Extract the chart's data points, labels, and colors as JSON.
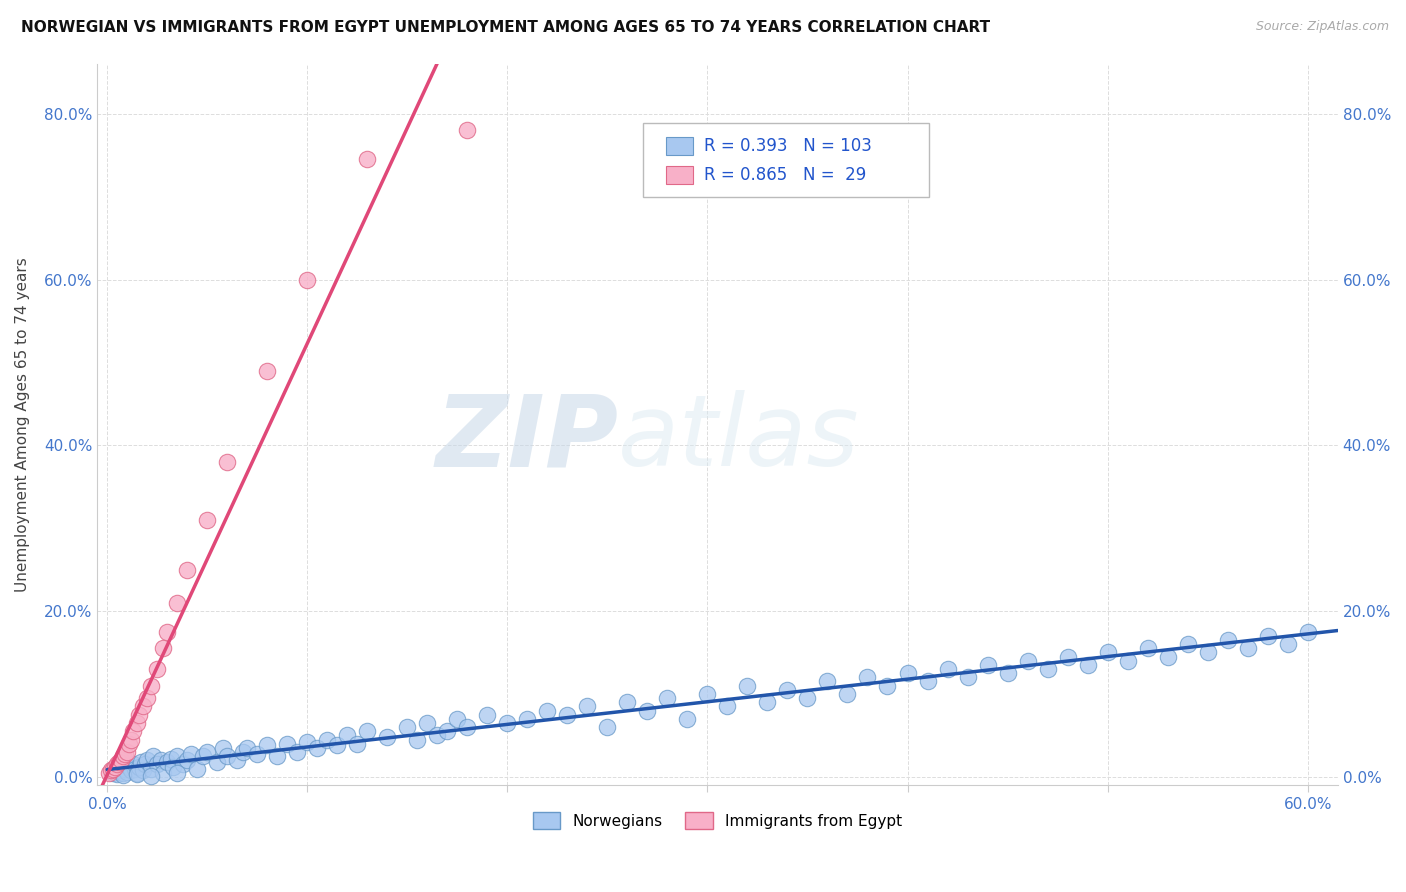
{
  "title": "NORWEGIAN VS IMMIGRANTS FROM EGYPT UNEMPLOYMENT AMONG AGES 65 TO 74 YEARS CORRELATION CHART",
  "source": "Source: ZipAtlas.com",
  "ylabel": "Unemployment Among Ages 65 to 74 years",
  "xlim": [
    -0.005,
    0.615
  ],
  "ylim": [
    -0.01,
    0.86
  ],
  "ytick_vals": [
    0.0,
    0.2,
    0.4,
    0.6,
    0.8
  ],
  "ytick_labels": [
    "0.0%",
    "20.0%",
    "40.0%",
    "60.0%",
    "80.0%"
  ],
  "norwegian_facecolor": "#a8c8f0",
  "norwegian_edgecolor": "#6899c8",
  "egypt_facecolor": "#f8b0c8",
  "egypt_edgecolor": "#e06888",
  "trendline_norwegian_color": "#2255aa",
  "trendline_egypt_color": "#e04878",
  "R_norwegian": 0.393,
  "N_norwegian": 103,
  "R_egypt": 0.865,
  "N_egypt": 29,
  "watermark_zip": "ZIP",
  "watermark_atlas": "atlas",
  "legend_norwegian": "Norwegians",
  "legend_egypt": "Immigrants from Egypt",
  "title_color": "#111111",
  "source_color": "#aaaaaa",
  "axis_tick_color": "#4477cc",
  "grid_color": "#dddddd",
  "background_color": "#ffffff",
  "nor_x": [
    0.003,
    0.005,
    0.006,
    0.008,
    0.009,
    0.01,
    0.011,
    0.012,
    0.013,
    0.014,
    0.015,
    0.016,
    0.017,
    0.018,
    0.019,
    0.02,
    0.022,
    0.023,
    0.025,
    0.027,
    0.028,
    0.03,
    0.032,
    0.033,
    0.035,
    0.038,
    0.04,
    0.042,
    0.045,
    0.048,
    0.05,
    0.055,
    0.058,
    0.06,
    0.065,
    0.068,
    0.07,
    0.075,
    0.08,
    0.085,
    0.09,
    0.095,
    0.1,
    0.105,
    0.11,
    0.115,
    0.12,
    0.125,
    0.13,
    0.14,
    0.15,
    0.155,
    0.16,
    0.165,
    0.17,
    0.175,
    0.18,
    0.19,
    0.2,
    0.21,
    0.22,
    0.23,
    0.24,
    0.25,
    0.26,
    0.27,
    0.28,
    0.29,
    0.3,
    0.31,
    0.32,
    0.33,
    0.34,
    0.35,
    0.36,
    0.37,
    0.38,
    0.39,
    0.4,
    0.41,
    0.42,
    0.43,
    0.44,
    0.45,
    0.46,
    0.47,
    0.48,
    0.49,
    0.5,
    0.51,
    0.52,
    0.53,
    0.54,
    0.55,
    0.56,
    0.57,
    0.58,
    0.59,
    0.6,
    0.008,
    0.015,
    0.022,
    0.035
  ],
  "nor_y": [
    0.005,
    0.003,
    0.008,
    0.004,
    0.01,
    0.006,
    0.012,
    0.008,
    0.015,
    0.01,
    0.005,
    0.012,
    0.018,
    0.008,
    0.015,
    0.02,
    0.01,
    0.025,
    0.015,
    0.02,
    0.005,
    0.018,
    0.022,
    0.012,
    0.025,
    0.015,
    0.02,
    0.028,
    0.01,
    0.025,
    0.03,
    0.018,
    0.035,
    0.025,
    0.02,
    0.03,
    0.035,
    0.028,
    0.038,
    0.025,
    0.04,
    0.03,
    0.042,
    0.035,
    0.045,
    0.038,
    0.05,
    0.04,
    0.055,
    0.048,
    0.06,
    0.045,
    0.065,
    0.05,
    0.055,
    0.07,
    0.06,
    0.075,
    0.065,
    0.07,
    0.08,
    0.075,
    0.085,
    0.06,
    0.09,
    0.08,
    0.095,
    0.07,
    0.1,
    0.085,
    0.11,
    0.09,
    0.105,
    0.095,
    0.115,
    0.1,
    0.12,
    0.11,
    0.125,
    0.115,
    0.13,
    0.12,
    0.135,
    0.125,
    0.14,
    0.13,
    0.145,
    0.135,
    0.15,
    0.14,
    0.155,
    0.145,
    0.16,
    0.15,
    0.165,
    0.155,
    0.17,
    0.16,
    0.175,
    0.002,
    0.003,
    0.001,
    0.004
  ],
  "egy_x": [
    0.001,
    0.002,
    0.003,
    0.004,
    0.005,
    0.006,
    0.007,
    0.008,
    0.009,
    0.01,
    0.011,
    0.012,
    0.013,
    0.015,
    0.016,
    0.018,
    0.02,
    0.022,
    0.025,
    0.028,
    0.03,
    0.035,
    0.04,
    0.05,
    0.06,
    0.08,
    0.1,
    0.13,
    0.18
  ],
  "egy_y": [
    0.005,
    0.008,
    0.01,
    0.012,
    0.015,
    0.018,
    0.02,
    0.025,
    0.028,
    0.03,
    0.04,
    0.045,
    0.055,
    0.065,
    0.075,
    0.085,
    0.095,
    0.11,
    0.13,
    0.155,
    0.175,
    0.21,
    0.25,
    0.31,
    0.38,
    0.49,
    0.6,
    0.745,
    0.78
  ]
}
